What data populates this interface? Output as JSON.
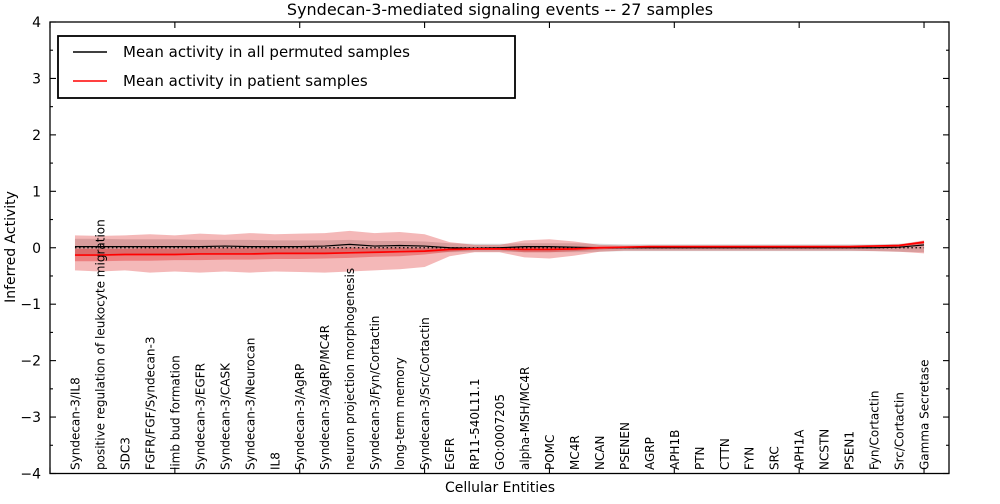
{
  "figure": {
    "title": "Syndecan-3-mediated signaling events -- 27 samples",
    "xlabel": "Cellular Entities",
    "ylabel": "Inferred Activity"
  },
  "legend": {
    "position": "upper left",
    "items": [
      {
        "label": "Mean activity in all permuted samples",
        "color": "#000000"
      },
      {
        "label": "Mean activity in patient samples",
        "color": "#ff0000"
      }
    ]
  },
  "chart_data": {
    "type": "line",
    "title": "Syndecan-3-mediated signaling events -- 27 samples",
    "xlabel": "Cellular Entities",
    "ylabel": "Inferred Activity",
    "ylim": [
      -4,
      4
    ],
    "xlim": [
      0,
      36
    ],
    "grid": false,
    "legend_position": "upper left",
    "y_tick_values": [
      4,
      3,
      2,
      1,
      0,
      -1,
      -2,
      -3,
      -4
    ],
    "y_tick_labels": [
      "4",
      "3",
      "2",
      "1",
      "0",
      "−1",
      "−2",
      "−3",
      "−4"
    ],
    "x_major_tick_step": 5,
    "y_minor_tick_step": 0.5,
    "zero_line": {
      "style": "dotted",
      "color": "#000000",
      "y": 0
    },
    "categories": [
      "Syndecan-3/IL8",
      "positive regulation of leukocyte migration",
      "SDC3",
      "FGFR/FGF/Syndecan-3",
      "limb bud formation",
      "Syndecan-3/EGFR",
      "Syndecan-3/CASK",
      "Syndecan-3/Neurocan",
      "IL8",
      "Syndecan-3/AgRP",
      "Syndecan-3/AgRP/MC4R",
      "neuron projection morphogenesis",
      "Syndecan-3/Fyn/Cortactin",
      "long-term memory",
      "Syndecan-3/Src/Cortactin",
      "EGFR",
      "RP11-540L11.1",
      "GO:0007205",
      "alpha-MSH/MC4R",
      "POMC",
      "MC4R",
      "NCAN",
      "PSENEN",
      "AGRP",
      "APH1B",
      "PTN",
      "CTTN",
      "FYN",
      "SRC",
      "APH1A",
      "NCSTN",
      "PSEN1",
      "Fyn/Cortactin",
      "Src/Cortactin",
      "Gamma Secretase"
    ],
    "series": [
      {
        "name": "permuted-std-band",
        "kind": "band",
        "color": "#aaaaaa",
        "opacity": 0.45,
        "upper": [
          0.16,
          0.16,
          0.15,
          0.15,
          0.15,
          0.14,
          0.14,
          0.14,
          0.13,
          0.13,
          0.13,
          0.14,
          0.12,
          0.12,
          0.11,
          0.08,
          0.07,
          0.07,
          0.08,
          0.08,
          0.08,
          0.07,
          0.06,
          0.06,
          0.06,
          0.06,
          0.06,
          0.06,
          0.06,
          0.06,
          0.06,
          0.06,
          0.06,
          0.07,
          0.09
        ],
        "lower": [
          -0.13,
          -0.13,
          -0.12,
          -0.12,
          -0.12,
          -0.11,
          -0.11,
          -0.11,
          -0.1,
          -0.1,
          -0.1,
          -0.09,
          -0.09,
          -0.08,
          -0.08,
          -0.08,
          -0.07,
          -0.07,
          -0.08,
          -0.08,
          -0.08,
          -0.07,
          -0.06,
          -0.06,
          -0.06,
          -0.06,
          -0.06,
          -0.06,
          -0.06,
          -0.06,
          -0.06,
          -0.06,
          -0.06,
          -0.07,
          -0.08
        ]
      },
      {
        "name": "patient-std-band-outer",
        "kind": "band",
        "color": "#dc1414",
        "opacity": 0.3,
        "upper": [
          0.22,
          0.21,
          0.22,
          0.24,
          0.22,
          0.25,
          0.23,
          0.26,
          0.24,
          0.25,
          0.26,
          0.3,
          0.26,
          0.28,
          0.24,
          0.1,
          0.05,
          0.05,
          0.13,
          0.15,
          0.11,
          0.05,
          0.04,
          0.04,
          0.04,
          0.04,
          0.04,
          0.04,
          0.04,
          0.04,
          0.04,
          0.04,
          0.05,
          0.06,
          0.13
        ],
        "lower": [
          -0.4,
          -0.42,
          -0.4,
          -0.44,
          -0.42,
          -0.44,
          -0.42,
          -0.44,
          -0.42,
          -0.43,
          -0.44,
          -0.42,
          -0.4,
          -0.38,
          -0.34,
          -0.15,
          -0.08,
          -0.08,
          -0.17,
          -0.19,
          -0.14,
          -0.07,
          -0.05,
          -0.05,
          -0.05,
          -0.05,
          -0.05,
          -0.05,
          -0.05,
          -0.05,
          -0.05,
          -0.05,
          -0.06,
          -0.07,
          -0.1
        ]
      },
      {
        "name": "patient-std-band-inner",
        "kind": "band",
        "color": "#dc1414",
        "opacity": 0.35,
        "upper": [
          -0.02,
          -0.02,
          -0.02,
          -0.01,
          -0.02,
          -0.01,
          -0.01,
          -0.01,
          -0.01,
          -0.01,
          -0.01,
          0.0,
          -0.01,
          0.0,
          -0.01,
          0.0,
          0.0,
          0.0,
          0.01,
          0.01,
          0.01,
          0.02,
          0.02,
          0.03,
          0.03,
          0.03,
          0.03,
          0.03,
          0.03,
          0.03,
          0.03,
          0.03,
          0.04,
          0.05,
          0.12
        ],
        "lower": [
          -0.24,
          -0.24,
          -0.23,
          -0.23,
          -0.22,
          -0.22,
          -0.21,
          -0.21,
          -0.2,
          -0.2,
          -0.19,
          -0.18,
          -0.16,
          -0.15,
          -0.12,
          -0.07,
          -0.04,
          -0.04,
          -0.08,
          -0.08,
          -0.06,
          -0.03,
          -0.01,
          0.0,
          0.0,
          0.0,
          0.0,
          0.0,
          0.0,
          0.0,
          0.0,
          0.0,
          0.01,
          0.02,
          0.07
        ]
      },
      {
        "name": "Mean activity in all permuted samples",
        "kind": "line",
        "color": "#000000",
        "width": 1.2,
        "values": [
          0.02,
          0.02,
          0.02,
          0.02,
          0.02,
          0.02,
          0.03,
          0.02,
          0.02,
          0.02,
          0.03,
          0.06,
          0.03,
          0.04,
          0.03,
          0.0,
          -0.01,
          0.0,
          0.02,
          0.02,
          0.01,
          0.0,
          0.0,
          0.0,
          0.0,
          0.0,
          0.0,
          0.0,
          0.0,
          0.0,
          0.0,
          0.0,
          0.0,
          0.01,
          0.05
        ]
      },
      {
        "name": "Mean activity in patient samples",
        "kind": "line",
        "color": "#ff0000",
        "width": 1.7,
        "values": [
          -0.13,
          -0.13,
          -0.12,
          -0.12,
          -0.12,
          -0.11,
          -0.11,
          -0.11,
          -0.1,
          -0.1,
          -0.1,
          -0.09,
          -0.08,
          -0.07,
          -0.06,
          -0.03,
          -0.02,
          -0.02,
          -0.03,
          -0.03,
          -0.02,
          0.0,
          0.01,
          0.02,
          0.02,
          0.02,
          0.02,
          0.02,
          0.02,
          0.02,
          0.02,
          0.02,
          0.03,
          0.04,
          0.1
        ]
      }
    ]
  }
}
